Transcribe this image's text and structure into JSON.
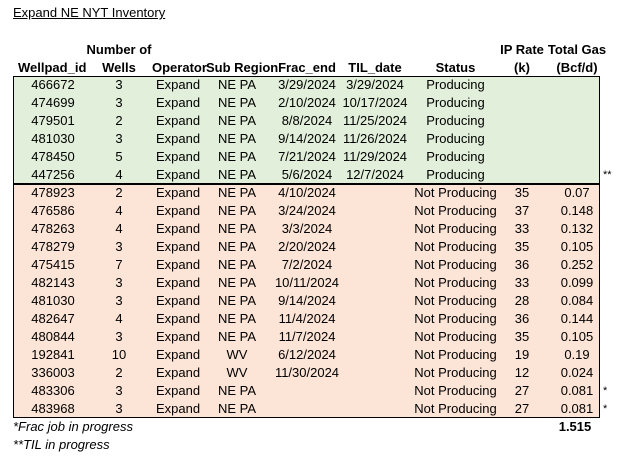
{
  "title": "Expand NE NYT Inventory",
  "headers": {
    "wellpad_id": "Wellpad_id",
    "wells_line1": "Number of",
    "wells_line2": "Wells",
    "operator": "Operator",
    "sub_region": "Sub Region",
    "frac_end": "Frac_end",
    "til_date": "TIL_date",
    "status": "Status",
    "ip_rate_line1": "IP Rate",
    "ip_rate_line2": "(k)",
    "total_gas_line1": "Total Gas",
    "total_gas_line2": "(Bcf/d)"
  },
  "rows": [
    {
      "wellpad_id": "466672",
      "wells": "3",
      "operator": "Expand",
      "sub_region": "NE PA",
      "frac_end": "3/29/2024",
      "til_date": "3/29/2024",
      "status": "Producing",
      "ip_rate": "",
      "total_gas": "",
      "note": "",
      "group": "prod"
    },
    {
      "wellpad_id": "474699",
      "wells": "3",
      "operator": "Expand",
      "sub_region": "NE PA",
      "frac_end": "2/10/2024",
      "til_date": "10/17/2024",
      "status": "Producing",
      "ip_rate": "",
      "total_gas": "",
      "note": "",
      "group": "prod"
    },
    {
      "wellpad_id": "479501",
      "wells": "2",
      "operator": "Expand",
      "sub_region": "NE PA",
      "frac_end": "8/8/2024",
      "til_date": "11/25/2024",
      "status": "Producing",
      "ip_rate": "",
      "total_gas": "",
      "note": "",
      "group": "prod"
    },
    {
      "wellpad_id": "481030",
      "wells": "3",
      "operator": "Expand",
      "sub_region": "NE PA",
      "frac_end": "9/14/2024",
      "til_date": "11/26/2024",
      "status": "Producing",
      "ip_rate": "",
      "total_gas": "",
      "note": "",
      "group": "prod"
    },
    {
      "wellpad_id": "478450",
      "wells": "5",
      "operator": "Expand",
      "sub_region": "NE PA",
      "frac_end": "7/21/2024",
      "til_date": "11/29/2024",
      "status": "Producing",
      "ip_rate": "",
      "total_gas": "",
      "note": "",
      "group": "prod"
    },
    {
      "wellpad_id": "447256",
      "wells": "4",
      "operator": "Expand",
      "sub_region": "NE PA",
      "frac_end": "5/6/2024",
      "til_date": "12/7/2024",
      "status": "Producing",
      "ip_rate": "",
      "total_gas": "",
      "note": "**",
      "group": "prod"
    },
    {
      "wellpad_id": "478923",
      "wells": "2",
      "operator": "Expand",
      "sub_region": "NE PA",
      "frac_end": "4/10/2024",
      "til_date": "",
      "status": "Not Producing",
      "ip_rate": "35",
      "total_gas": "0.07",
      "note": "",
      "group": "np"
    },
    {
      "wellpad_id": "476586",
      "wells": "4",
      "operator": "Expand",
      "sub_region": "NE PA",
      "frac_end": "3/24/2024",
      "til_date": "",
      "status": "Not Producing",
      "ip_rate": "37",
      "total_gas": "0.148",
      "note": "",
      "group": "np"
    },
    {
      "wellpad_id": "478263",
      "wells": "4",
      "operator": "Expand",
      "sub_region": "NE PA",
      "frac_end": "3/3/2024",
      "til_date": "",
      "status": "Not Producing",
      "ip_rate": "33",
      "total_gas": "0.132",
      "note": "",
      "group": "np"
    },
    {
      "wellpad_id": "478279",
      "wells": "3",
      "operator": "Expand",
      "sub_region": "NE PA",
      "frac_end": "2/20/2024",
      "til_date": "",
      "status": "Not Producing",
      "ip_rate": "35",
      "total_gas": "0.105",
      "note": "",
      "group": "np"
    },
    {
      "wellpad_id": "475415",
      "wells": "7",
      "operator": "Expand",
      "sub_region": "NE PA",
      "frac_end": "7/2/2024",
      "til_date": "",
      "status": "Not Producing",
      "ip_rate": "36",
      "total_gas": "0.252",
      "note": "",
      "group": "np"
    },
    {
      "wellpad_id": "482143",
      "wells": "3",
      "operator": "Expand",
      "sub_region": "NE PA",
      "frac_end": "10/11/2024",
      "til_date": "",
      "status": "Not Producing",
      "ip_rate": "33",
      "total_gas": "0.099",
      "note": "",
      "group": "np"
    },
    {
      "wellpad_id": "481030",
      "wells": "3",
      "operator": "Expand",
      "sub_region": "NE PA",
      "frac_end": "9/14/2024",
      "til_date": "",
      "status": "Not Producing",
      "ip_rate": "28",
      "total_gas": "0.084",
      "note": "",
      "group": "np"
    },
    {
      "wellpad_id": "482647",
      "wells": "4",
      "operator": "Expand",
      "sub_region": "NE PA",
      "frac_end": "11/4/2024",
      "til_date": "",
      "status": "Not Producing",
      "ip_rate": "36",
      "total_gas": "0.144",
      "note": "",
      "group": "np"
    },
    {
      "wellpad_id": "480844",
      "wells": "3",
      "operator": "Expand",
      "sub_region": "NE PA",
      "frac_end": "11/7/2024",
      "til_date": "",
      "status": "Not Producing",
      "ip_rate": "35",
      "total_gas": "0.105",
      "note": "",
      "group": "np"
    },
    {
      "wellpad_id": "192841",
      "wells": "10",
      "operator": "Expand",
      "sub_region": "WV",
      "frac_end": "6/12/2024",
      "til_date": "",
      "status": "Not Producing",
      "ip_rate": "19",
      "total_gas": "0.19",
      "note": "",
      "group": "np"
    },
    {
      "wellpad_id": "336003",
      "wells": "2",
      "operator": "Expand",
      "sub_region": "WV",
      "frac_end": "11/30/2024",
      "til_date": "",
      "status": "Not Producing",
      "ip_rate": "12",
      "total_gas": "0.024",
      "note": "",
      "group": "np"
    },
    {
      "wellpad_id": "483306",
      "wells": "3",
      "operator": "Expand",
      "sub_region": "NE PA",
      "frac_end": "",
      "til_date": "",
      "status": "Not Producing",
      "ip_rate": "27",
      "total_gas": "0.081",
      "note": "*",
      "group": "np"
    },
    {
      "wellpad_id": "483968",
      "wells": "3",
      "operator": "Expand",
      "sub_region": "NE PA",
      "frac_end": "",
      "til_date": "",
      "status": "Not Producing",
      "ip_rate": "27",
      "total_gas": "0.081",
      "note": "*",
      "group": "np"
    }
  ],
  "total_gas_sum": "1.515",
  "footnotes": {
    "frac": "*Frac job in progress",
    "til": "**TIL in progress"
  },
  "colors": {
    "producing_fill": "#e2efda",
    "not_producing_fill": "#fce4d6"
  }
}
